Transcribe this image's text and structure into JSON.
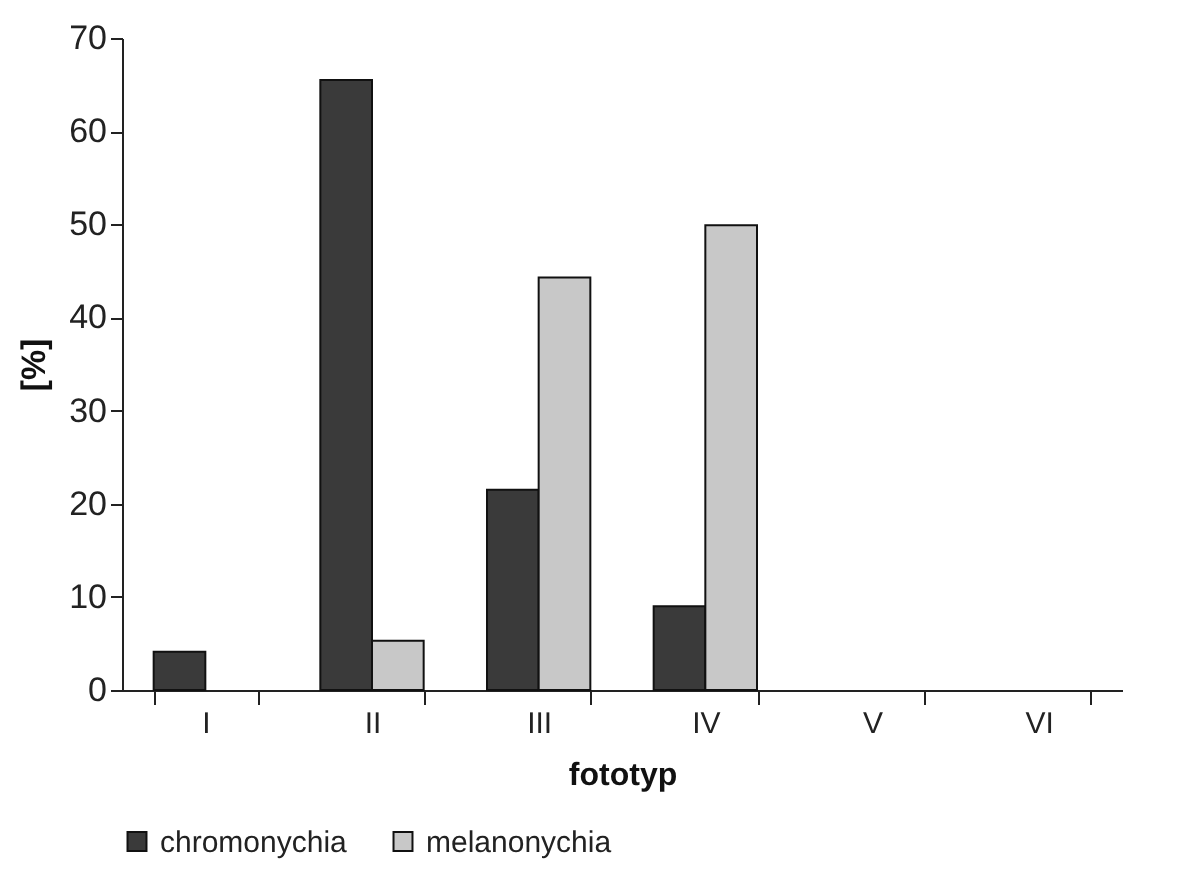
{
  "chart_data": {
    "type": "bar",
    "xlabel": "fototyp",
    "ylabel": "[%]",
    "categories": [
      "I",
      "II",
      "III",
      "IV",
      "V",
      "VI"
    ],
    "series": [
      {
        "name": "chromonychia",
        "color": "#3a3a3a",
        "values": [
          4.1,
          65.5,
          21.5,
          9.0,
          null,
          null
        ]
      },
      {
        "name": "melanonychia",
        "color": "#c8c8c8",
        "values": [
          null,
          5.3,
          44.3,
          49.9,
          null,
          null
        ]
      }
    ],
    "ylim": [
      0,
      70
    ],
    "yticks": [
      0,
      10,
      20,
      30,
      40,
      50,
      60,
      70
    ],
    "grid": false,
    "legend": "bottom"
  }
}
